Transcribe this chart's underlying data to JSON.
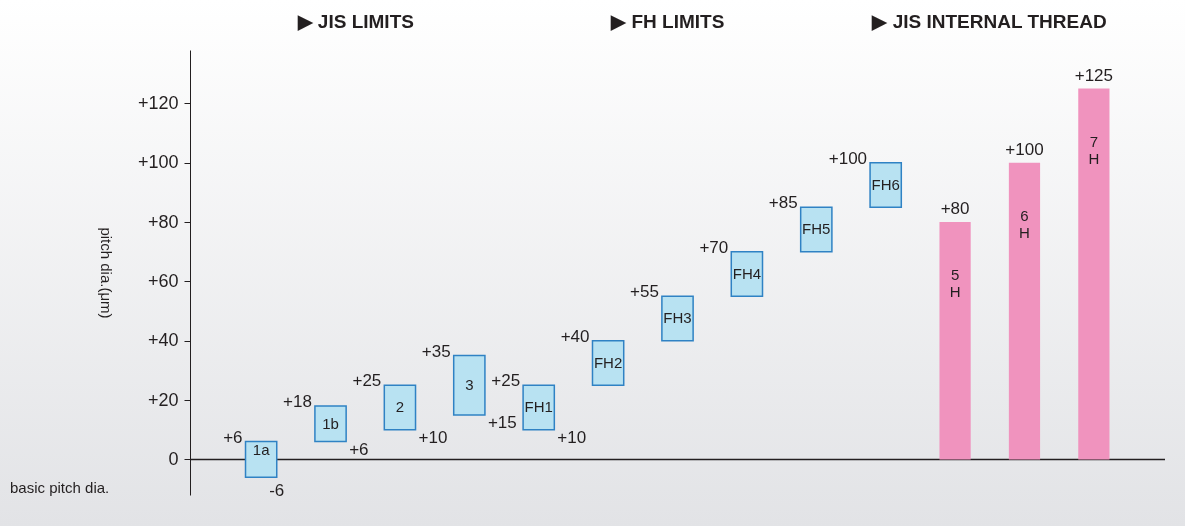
{
  "chart_data": {
    "type": "bar",
    "ylabel": "pitch dia.(μm)",
    "categories": [
      "1a",
      "1b",
      "2",
      "3",
      "FH1",
      "FH2",
      "FH3",
      "FH4",
      "FH5",
      "FH6",
      "5 H",
      "6 H",
      "7 H"
    ],
    "base": [
      -6,
      6,
      10,
      15,
      10,
      25,
      40,
      55,
      70,
      85,
      0,
      0,
      0
    ],
    "values": [
      12,
      12,
      15,
      20,
      15,
      15,
      15,
      15,
      15,
      15,
      80,
      100,
      125
    ],
    "colors": [
      "#b8e2f2",
      "#b8e2f2",
      "#b8e2f2",
      "#b8e2f2",
      "#b8e2f2",
      "#b8e2f2",
      "#b8e2f2",
      "#b8e2f2",
      "#b8e2f2",
      "#b8e2f2",
      "#f093be",
      "#f093be",
      "#f093be"
    ],
    "ylim": [
      -12,
      138
    ],
    "yticks": [
      {
        "value": 0,
        "label": "0"
      },
      {
        "value": 20,
        "label": "+20"
      },
      {
        "value": 40,
        "label": "+40"
      },
      {
        "value": 60,
        "label": "+60"
      },
      {
        "value": 80,
        "label": "+80"
      },
      {
        "value": 100,
        "label": "+100"
      },
      {
        "value": 120,
        "label": "+120"
      }
    ],
    "ref_lines": [
      {
        "axis": "y",
        "value": 0,
        "label": "basic pitch dia."
      }
    ],
    "annotations": [
      "▶ JIS LIMITS",
      "▶ FH LIMITS",
      "▶ JIS INTERNAL THREAD",
      {
        "text": "-6",
        "x": "1a",
        "y": -6
      },
      {
        "text": "+6",
        "x": "1a",
        "y": 6
      },
      {
        "text": "+6",
        "x": "1b",
        "y": 6
      },
      {
        "text": "+18",
        "x": "1b",
        "y": 18
      },
      {
        "text": "+10",
        "x": "2",
        "y": 10
      },
      {
        "text": "+25",
        "x": "2",
        "y": 25
      },
      {
        "text": "+15",
        "x": "3",
        "y": 15
      },
      {
        "text": "+35",
        "x": "3",
        "y": 35
      },
      {
        "text": "+10",
        "x": "FH1",
        "y": 10
      },
      {
        "text": "+25",
        "x": "FH1",
        "y": 25
      },
      {
        "text": "+40",
        "x": "FH2",
        "y": 40
      },
      {
        "text": "+55",
        "x": "FH3",
        "y": 55
      },
      {
        "text": "+70",
        "x": "FH4",
        "y": 70
      },
      {
        "text": "+85",
        "x": "FH5",
        "y": 85
      },
      {
        "text": "+100",
        "x": "FH6",
        "y": 100
      },
      {
        "text": "+80",
        "x": "5 H",
        "y": 80
      },
      {
        "text": "+100",
        "x": "6 H",
        "y": 100
      },
      {
        "text": "+125",
        "x": "7 H",
        "y": 125
      }
    ],
    "grid": false
  }
}
